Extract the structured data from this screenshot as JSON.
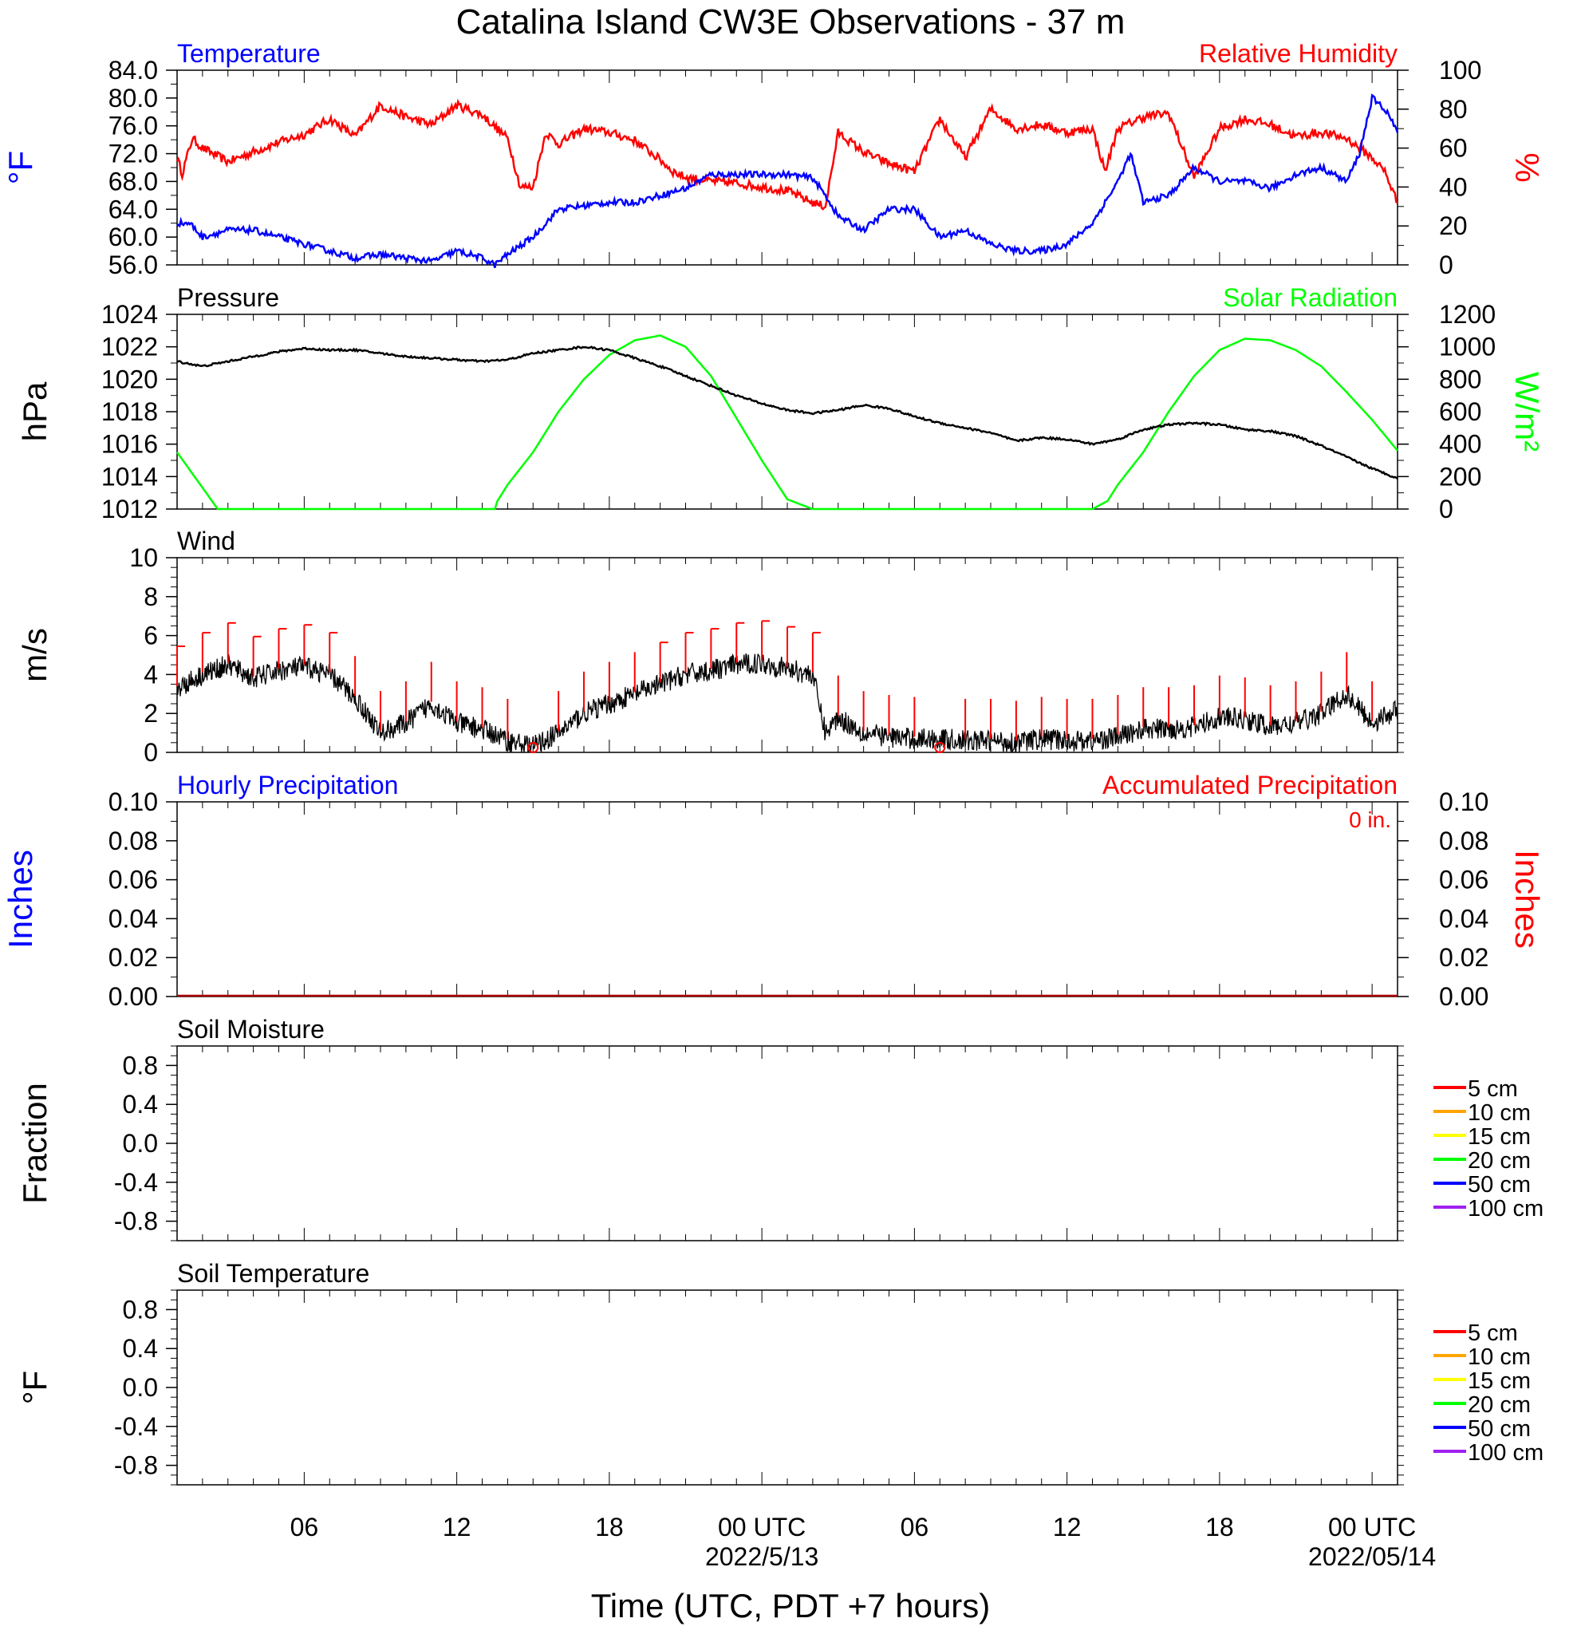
{
  "title": "Catalina Island CW3E Observations - 37 m",
  "x_axis": {
    "label": "Time (UTC, PDT +7 hours)",
    "ticks": [
      {
        "h": 6,
        "label": "06"
      },
      {
        "h": 12,
        "label": "12"
      },
      {
        "h": 18,
        "label": "18"
      },
      {
        "h": 24,
        "label": "00 UTC",
        "sub": "2022/5/13"
      },
      {
        "h": 30,
        "label": "06"
      },
      {
        "h": 36,
        "label": "12"
      },
      {
        "h": 42,
        "label": "18"
      },
      {
        "h": 48,
        "label": "00 UTC",
        "sub": "2022/05/14"
      }
    ]
  },
  "colors": {
    "blue": "#0000ff",
    "red": "#ff0000",
    "green": "#00ff00",
    "black": "#000000",
    "darkred": "#aa0000"
  },
  "panels": {
    "temp": {
      "title_left": "Temperature",
      "title_right": "Relative Humidity",
      "ylabel_left": "°F",
      "ylabel_right": "%",
      "ticks_left": [
        "56.0",
        "60.0",
        "64.0",
        "68.0",
        "72.0",
        "76.0",
        "80.0",
        "84.0"
      ],
      "ticks_right": [
        "0",
        "20",
        "40",
        "60",
        "80",
        "100"
      ]
    },
    "pressure": {
      "title_left": "Pressure",
      "title_right": "Solar Radiation",
      "ylabel_left": "hPa",
      "ylabel_right": "W/m²",
      "ticks_left": [
        "1012",
        "1014",
        "1016",
        "1018",
        "1020",
        "1022",
        "1024"
      ],
      "ticks_right": [
        "0",
        "200",
        "400",
        "600",
        "800",
        "1000",
        "1200"
      ]
    },
    "wind": {
      "title_left": "Wind",
      "ylabel_left": "m/s",
      "ticks_left": [
        "0",
        "2",
        "4",
        "6",
        "8",
        "10"
      ]
    },
    "precip": {
      "title_left": "Hourly Precipitation",
      "title_right": "Accumulated Precipitation",
      "accum_label": "0 in.",
      "ylabel_left": "Inches",
      "ylabel_right": "Inches",
      "ticks_left": [
        "0.00",
        "0.02",
        "0.04",
        "0.06",
        "0.08",
        "0.10"
      ],
      "ticks_right": [
        "0.00",
        "0.02",
        "0.04",
        "0.06",
        "0.08",
        "0.10"
      ]
    },
    "soilm": {
      "title_left": "Soil Moisture",
      "ylabel_left": "Fraction",
      "ticks_left": [
        "-0.8",
        "-0.4",
        "0.0",
        "0.4",
        "0.8"
      ]
    },
    "soilt": {
      "title_left": "Soil Temperature",
      "ylabel_left": "°F",
      "ticks_left": [
        "-0.8",
        "-0.4",
        "0.0",
        "0.4",
        "0.8"
      ]
    }
  },
  "legend": [
    {
      "label": "5 cm",
      "color": "#ff0000"
    },
    {
      "label": "10 cm",
      "color": "#ffa500"
    },
    {
      "label": "15 cm",
      "color": "#ffff00"
    },
    {
      "label": "20 cm",
      "color": "#00ff00"
    },
    {
      "label": "50 cm",
      "color": "#0000ff"
    },
    {
      "label": "100 cm",
      "color": "#a020f0"
    }
  ],
  "chart_data": [
    {
      "type": "line",
      "title": "Temperature / Relative Humidity",
      "x_units": "hours since 2022-05-12 01 UTC",
      "xlim": [
        1,
        49
      ],
      "series": [
        {
          "name": "Temperature",
          "axis": "left",
          "unit": "°F",
          "ylim": [
            56,
            84
          ],
          "x": [
            1,
            1.5,
            2,
            3,
            4,
            5,
            6,
            7,
            8,
            9,
            10,
            11,
            12,
            13,
            13.5,
            14,
            15,
            16,
            17,
            18,
            19,
            20,
            21,
            22,
            23,
            24,
            25,
            26,
            26.5,
            27,
            28,
            29,
            30,
            31,
            32,
            33,
            34,
            35,
            36,
            37,
            38,
            38.5,
            39,
            40,
            41,
            42,
            43,
            44,
            45,
            46,
            47,
            47.5,
            48,
            48.6,
            49
          ],
          "y": [
            62,
            62,
            60,
            61,
            61,
            60,
            59,
            58,
            57,
            57.5,
            57,
            56.5,
            58,
            57,
            56,
            57.5,
            60,
            64,
            64.5,
            65,
            65,
            66,
            67,
            69,
            69,
            69,
            69,
            68.5,
            66,
            63,
            61,
            64,
            64,
            60,
            61,
            59,
            58,
            58,
            59,
            62,
            68,
            72,
            65,
            66,
            70,
            68,
            68,
            67,
            69,
            70,
            68,
            72,
            80,
            78,
            75
          ]
        },
        {
          "name": "Relative Humidity",
          "axis": "right",
          "unit": "%",
          "ylim": [
            0,
            100
          ],
          "x": [
            1,
            1.2,
            1.6,
            2,
            3,
            4,
            5,
            6,
            7,
            8,
            9,
            10,
            11,
            12,
            13,
            14,
            14.5,
            15,
            15.5,
            16,
            17,
            18,
            19,
            20,
            20.5,
            21,
            22,
            23,
            24,
            25,
            26,
            26.5,
            27,
            28,
            29,
            30,
            31,
            32,
            33,
            34,
            35,
            36,
            37,
            37.5,
            38,
            39,
            40,
            41,
            42,
            43,
            44,
            45,
            46,
            47,
            48,
            48.5,
            49
          ],
          "y": [
            55,
            47,
            65,
            60,
            53,
            58,
            63,
            67,
            75,
            66,
            82,
            76,
            72,
            82,
            77,
            65,
            40,
            40,
            68,
            62,
            70,
            68,
            64,
            54,
            48,
            45,
            43,
            42,
            40,
            38,
            32,
            30,
            68,
            58,
            52,
            48,
            75,
            55,
            80,
            70,
            72,
            68,
            70,
            48,
            70,
            76,
            78,
            45,
            70,
            75,
            72,
            66,
            68,
            65,
            55,
            48,
            32
          ]
        }
      ]
    },
    {
      "type": "line",
      "title": "Pressure / Solar Radiation",
      "x_units": "hours since 2022-05-12 01 UTC",
      "xlim": [
        1,
        49
      ],
      "series": [
        {
          "name": "Pressure",
          "axis": "left",
          "unit": "hPa",
          "ylim": [
            1012,
            1024
          ],
          "x": [
            1,
            2,
            3,
            4,
            5,
            6,
            7,
            8,
            9,
            10,
            11,
            12,
            13,
            14,
            15,
            16,
            17,
            18,
            19,
            20,
            21,
            22,
            23,
            24,
            25,
            26,
            27,
            28,
            29,
            30,
            31,
            32,
            33,
            34,
            35,
            36,
            37,
            38,
            39,
            40,
            41,
            42,
            43,
            44,
            45,
            46,
            47,
            48,
            49
          ],
          "y": [
            1021.1,
            1020.8,
            1021.1,
            1021.4,
            1021.7,
            1021.9,
            1021.8,
            1021.8,
            1021.6,
            1021.4,
            1021.3,
            1021.2,
            1021.1,
            1021.2,
            1021.6,
            1021.8,
            1022.0,
            1021.8,
            1021.3,
            1020.8,
            1020.2,
            1019.6,
            1019.0,
            1018.5,
            1018.1,
            1017.9,
            1018.1,
            1018.4,
            1018.2,
            1017.7,
            1017.3,
            1017.0,
            1016.7,
            1016.2,
            1016.4,
            1016.3,
            1016.0,
            1016.3,
            1016.9,
            1017.2,
            1017.3,
            1017.2,
            1016.9,
            1016.8,
            1016.5,
            1015.9,
            1015.2,
            1014.5,
            1013.9
          ]
        },
        {
          "name": "Solar Radiation",
          "axis": "right",
          "unit": "W/m²",
          "ylim": [
            0,
            1200
          ],
          "x": [
            1,
            2.6,
            13.5,
            13.6,
            14,
            15,
            16,
            17,
            18,
            19,
            20,
            21,
            22,
            23,
            24,
            25,
            26,
            26.6,
            37,
            37.6,
            38,
            39,
            40,
            41,
            42,
            43,
            44,
            45,
            46,
            47,
            48,
            49
          ],
          "y": [
            350,
            0,
            0,
            50,
            150,
            350,
            600,
            800,
            950,
            1040,
            1070,
            1000,
            820,
            560,
            300,
            60,
            0,
            0,
            0,
            50,
            150,
            350,
            600,
            820,
            980,
            1050,
            1040,
            980,
            880,
            720,
            550,
            360
          ]
        }
      ]
    },
    {
      "type": "line",
      "title": "Wind",
      "x_units": "hours since 2022-05-12 01 UTC",
      "xlim": [
        1,
        49
      ],
      "ylim": [
        0,
        10
      ],
      "series": [
        {
          "name": "Wind speed",
          "unit": "m/s",
          "x": [
            1,
            2,
            3,
            4,
            5,
            6,
            7,
            8,
            9,
            10,
            11,
            12,
            13,
            14,
            15,
            16,
            17,
            18,
            19,
            20,
            21,
            22,
            23,
            24,
            25,
            26,
            26.5,
            27,
            28,
            29,
            30,
            31,
            32,
            33,
            34,
            35,
            36,
            37,
            38,
            39,
            40,
            41,
            42,
            43,
            44,
            45,
            46,
            47,
            48,
            49
          ],
          "y": [
            3.3,
            4.0,
            4.5,
            3.8,
            4.2,
            4.4,
            4.0,
            2.8,
            1.0,
            1.5,
            2.5,
            1.5,
            1.2,
            0.6,
            0.3,
            1.0,
            2.0,
            2.5,
            3.0,
            3.5,
            4.0,
            4.2,
            4.5,
            4.6,
            4.3,
            4.0,
            1.0,
            1.8,
            1.0,
            0.8,
            0.7,
            0.7,
            0.6,
            0.6,
            0.5,
            0.7,
            0.6,
            0.6,
            0.8,
            1.2,
            1.2,
            1.3,
            1.8,
            1.7,
            1.3,
            1.5,
            2.0,
            3.0,
            1.5,
            2.2
          ]
        }
      ]
    },
    {
      "type": "line",
      "title": "Hourly Precipitation / Accumulated Precipitation",
      "x_units": "hours since 2022-05-12 01 UTC",
      "xlim": [
        1,
        49
      ],
      "ylim": [
        0,
        0.1
      ],
      "series": [
        {
          "name": "Hourly Precipitation",
          "axis": "left",
          "unit": "in",
          "x": [
            1,
            49
          ],
          "y": [
            0,
            0
          ]
        },
        {
          "name": "Accumulated Precipitation",
          "axis": "right",
          "unit": "in",
          "x": [
            1,
            49
          ],
          "y": [
            0,
            0
          ]
        }
      ]
    },
    {
      "type": "line",
      "title": "Soil Moisture",
      "ylim": [
        -1,
        1
      ],
      "series": []
    },
    {
      "type": "line",
      "title": "Soil Temperature",
      "ylim": [
        -1,
        1
      ],
      "series": []
    }
  ]
}
